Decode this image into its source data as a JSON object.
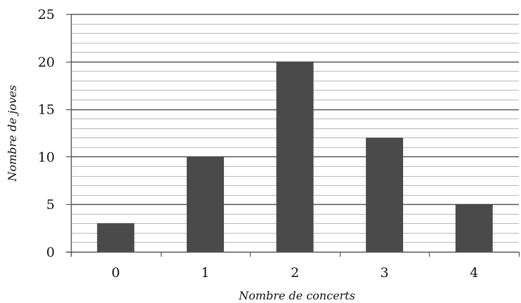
{
  "chart_data": {
    "type": "bar",
    "title": "",
    "xlabel": "Nombre de concerts",
    "ylabel": "Nombre de joves",
    "categories": [
      "0",
      "1",
      "2",
      "3",
      "4"
    ],
    "values": [
      3,
      10,
      20,
      12,
      5
    ],
    "ylim": [
      0,
      25
    ],
    "yticks": [
      "0",
      "5",
      "10",
      "15",
      "20",
      "25"
    ],
    "minor_step": 1,
    "major_step": 5,
    "grid": true,
    "legend": "none",
    "bar_color": "#4a4a4a",
    "major_grid_color": "#555555",
    "minor_grid_color": "#b9b9b9"
  }
}
